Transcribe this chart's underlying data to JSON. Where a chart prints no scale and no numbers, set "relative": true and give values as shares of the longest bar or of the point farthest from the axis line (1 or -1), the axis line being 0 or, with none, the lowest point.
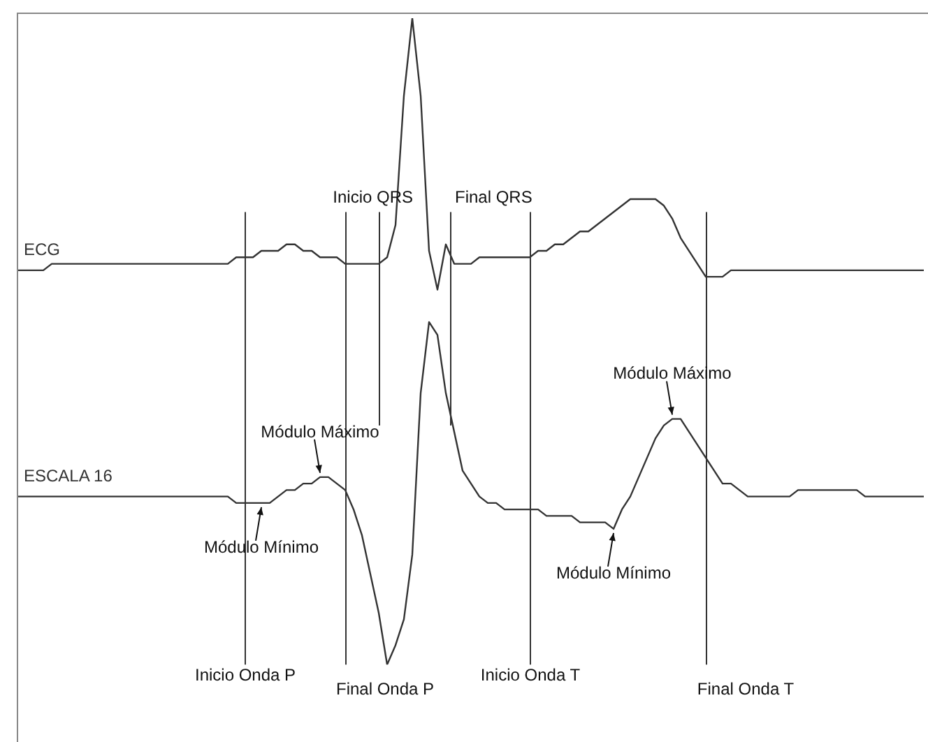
{
  "chart_data": {
    "type": "line",
    "relative": true,
    "grid": false,
    "legend": false,
    "marker": "none",
    "line_style": "solid",
    "categories": [
      null,
      null,
      null,
      null,
      null,
      null,
      null,
      null,
      null,
      null,
      null,
      null,
      null,
      null,
      null,
      null,
      null,
      null,
      null,
      null,
      null,
      null,
      null,
      null,
      null,
      null,
      null,
      null,
      null,
      null,
      null,
      null,
      null,
      null,
      null,
      null,
      null,
      null,
      null,
      null,
      null,
      null,
      null,
      null,
      null,
      null,
      null,
      null,
      null,
      null,
      null,
      null,
      null,
      null,
      null,
      null,
      null,
      null,
      null,
      null,
      null,
      null,
      null,
      null,
      null,
      null,
      null,
      null,
      null,
      null,
      null,
      null,
      null,
      null,
      null,
      null,
      null,
      null,
      null,
      null,
      null,
      null,
      null,
      null,
      null,
      null,
      null,
      null,
      null,
      null,
      null,
      null,
      null,
      null,
      null,
      null,
      null,
      null,
      null,
      null,
      null,
      null,
      null,
      null,
      null,
      null,
      null,
      null,
      null
    ],
    "series": [
      {
        "name": "ECG",
        "color": "#333333",
        "values": [
          0.61,
          0.61,
          0.61,
          0.61,
          0.62,
          0.62,
          0.62,
          0.62,
          0.62,
          0.62,
          0.62,
          0.62,
          0.62,
          0.62,
          0.62,
          0.62,
          0.62,
          0.62,
          0.62,
          0.62,
          0.62,
          0.62,
          0.62,
          0.62,
          0.62,
          0.62,
          0.63,
          0.63,
          0.63,
          0.64,
          0.64,
          0.64,
          0.65,
          0.65,
          0.64,
          0.64,
          0.63,
          0.63,
          0.63,
          0.62,
          0.62,
          0.62,
          0.62,
          0.62,
          0.63,
          0.68,
          0.88,
          1,
          0.88,
          0.64,
          0.58,
          0.65,
          0.62,
          0.62,
          0.62,
          0.63,
          0.63,
          0.63,
          0.63,
          0.63,
          0.63,
          0.63,
          0.64,
          0.64,
          0.65,
          0.65,
          0.66,
          0.67,
          0.67,
          0.68,
          0.69,
          0.7,
          0.71,
          0.72,
          0.72,
          0.72,
          0.72,
          0.71,
          0.69,
          0.66,
          0.64,
          0.62,
          0.6,
          0.6,
          0.6,
          0.61,
          0.61,
          0.61,
          0.61,
          0.61,
          0.61,
          0.61,
          0.61,
          0.61,
          0.61,
          0.61,
          0.61,
          0.61,
          0.61,
          0.61,
          0.61,
          0.61,
          0.61,
          0.61,
          0.61,
          0.61,
          0.61,
          0.61,
          0.61
        ]
      },
      {
        "name": "ESCALA 16",
        "color": "#333333",
        "values": [
          0.26,
          0.26,
          0.26,
          0.26,
          0.26,
          0.26,
          0.26,
          0.26,
          0.26,
          0.26,
          0.26,
          0.26,
          0.26,
          0.26,
          0.26,
          0.26,
          0.26,
          0.26,
          0.26,
          0.26,
          0.26,
          0.26,
          0.26,
          0.26,
          0.26,
          0.26,
          0.25,
          0.25,
          0.25,
          0.25,
          0.25,
          0.26,
          0.27,
          0.27,
          0.28,
          0.28,
          0.29,
          0.29,
          0.28,
          0.27,
          0.24,
          0.2,
          0.14,
          0.08,
          0,
          0.03,
          0.07,
          0.17,
          0.42,
          0.53,
          0.51,
          0.42,
          0.36,
          0.3,
          0.28,
          0.26,
          0.25,
          0.25,
          0.24,
          0.24,
          0.24,
          0.24,
          0.24,
          0.23,
          0.23,
          0.23,
          0.23,
          0.22,
          0.22,
          0.22,
          0.22,
          0.21,
          0.24,
          0.26,
          0.29,
          0.32,
          0.35,
          0.37,
          0.38,
          0.38,
          0.36,
          0.34,
          0.32,
          0.3,
          0.28,
          0.28,
          0.27,
          0.26,
          0.26,
          0.26,
          0.26,
          0.26,
          0.26,
          0.27,
          0.27,
          0.27,
          0.27,
          0.27,
          0.27,
          0.27,
          0.27,
          0.26,
          0.26,
          0.26,
          0.26,
          0.26,
          0.26,
          0.26,
          0.26
        ]
      }
    ],
    "annotations": [
      "Inicio Onda P",
      "Final Onda P",
      "Inicio QRS",
      "Final QRS",
      "Inicio Onda T",
      "Final Onda T",
      "Módulo Máximo",
      "Módulo Mínimo",
      "Módulo Máximo",
      "Módulo Mínimo"
    ]
  }
}
